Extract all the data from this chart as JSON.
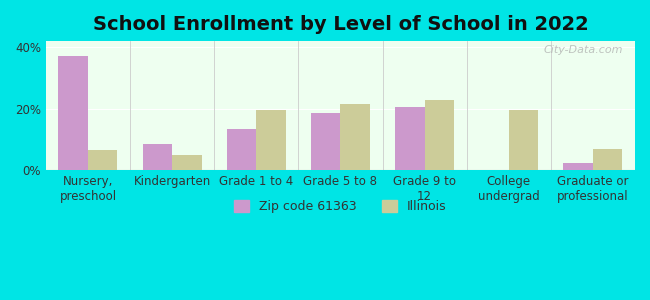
{
  "title": "School Enrollment by Level of School in 2022",
  "categories": [
    "Nursery,\npreschool",
    "Kindergarten",
    "Grade 1 to 4",
    "Grade 5 to 8",
    "Grade 9 to\n12",
    "College\nundergrad",
    "Graduate or\nprofessional"
  ],
  "zip_values": [
    37.0,
    8.5,
    13.5,
    18.5,
    20.5,
    0.0,
    2.5
  ],
  "illinois_values": [
    6.5,
    5.0,
    19.5,
    21.5,
    23.0,
    19.5,
    7.0
  ],
  "zip_color": "#cc99cc",
  "illinois_color": "#cccc99",
  "background_outer": "#00e5e5",
  "background_inner": "#eefff0",
  "ylim": [
    0,
    42
  ],
  "yticks": [
    0,
    20,
    40
  ],
  "ytick_labels": [
    "0%",
    "20%",
    "40%"
  ],
  "legend_zip_label": "Zip code 61363",
  "legend_illinois_label": "Illinois",
  "watermark": "City-Data.com",
  "title_fontsize": 14,
  "bar_width": 0.35,
  "tick_fontsize": 8.5,
  "legend_fontsize": 9
}
